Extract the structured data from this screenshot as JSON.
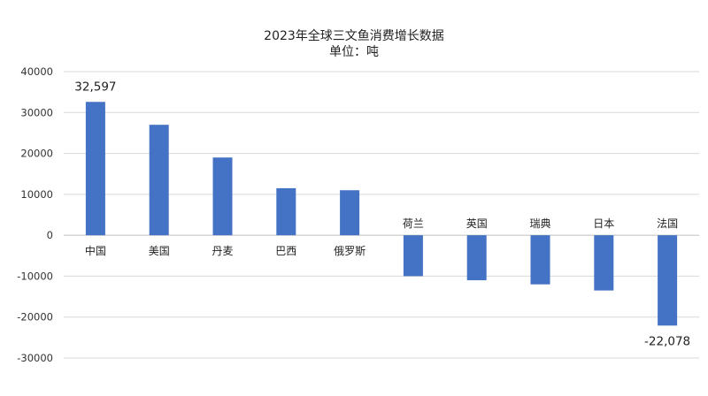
{
  "chart_data": {
    "type": "bar",
    "title": "2023年全球三文鱼消费增长数据",
    "subtitle": "单位：吨",
    "categories": [
      "中国",
      "美国",
      "丹麦",
      "巴西",
      "俄罗斯",
      "荷兰",
      "英国",
      "瑞典",
      "日本",
      "法国"
    ],
    "values": [
      32597,
      27000,
      19000,
      11500,
      11000,
      -10000,
      -11000,
      -12000,
      -13500,
      -22078
    ],
    "data_labels": [
      {
        "index": 0,
        "text": "32,597"
      },
      {
        "index": 9,
        "text": "-22,078"
      }
    ],
    "ylim": [
      -30000,
      40000
    ],
    "yticks": [
      40000,
      30000,
      20000,
      10000,
      0,
      -10000,
      -20000,
      -30000
    ],
    "ytick_labels": [
      "40000",
      "30000",
      "20000",
      "10000",
      "0",
      "-10000",
      "-20000",
      "-30000"
    ],
    "grid": true,
    "legend": "none",
    "bar_color": "#4472C4"
  }
}
